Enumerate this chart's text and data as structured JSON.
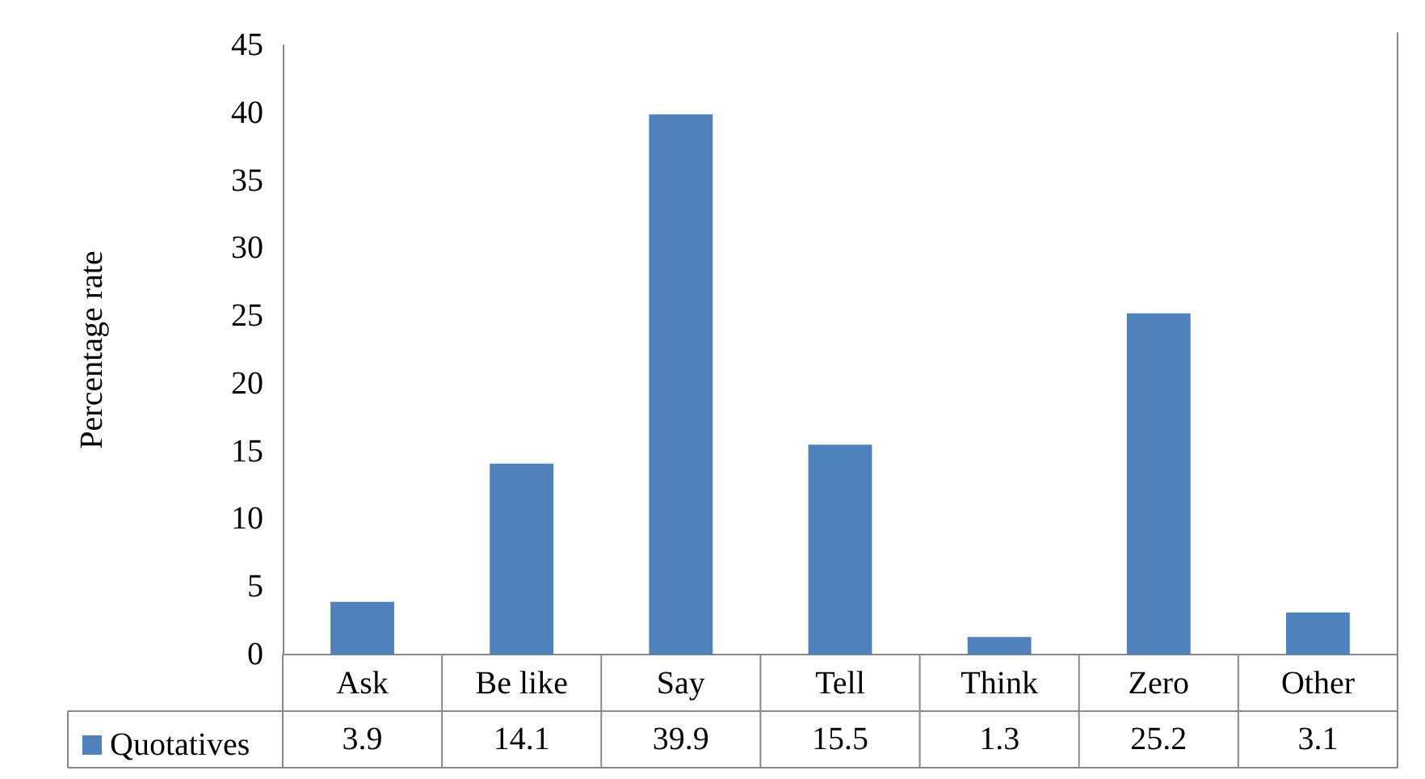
{
  "chart_data": {
    "type": "bar",
    "ylabel": "Percentage rate",
    "categories": [
      "Ask",
      "Be like",
      "Say",
      "Tell",
      "Think",
      "Zero",
      "Other"
    ],
    "series": [
      {
        "name": "Quotatives",
        "color": "#4f81bd",
        "values": [
          3.9,
          14.1,
          39.9,
          15.5,
          1.3,
          25.2,
          3.1
        ]
      }
    ],
    "ylim": [
      0,
      45
    ],
    "yticks": [
      0,
      5,
      10,
      15,
      20,
      25,
      30,
      35,
      40,
      45
    ],
    "grid": false,
    "legend": "bottom",
    "data_labels": true
  }
}
